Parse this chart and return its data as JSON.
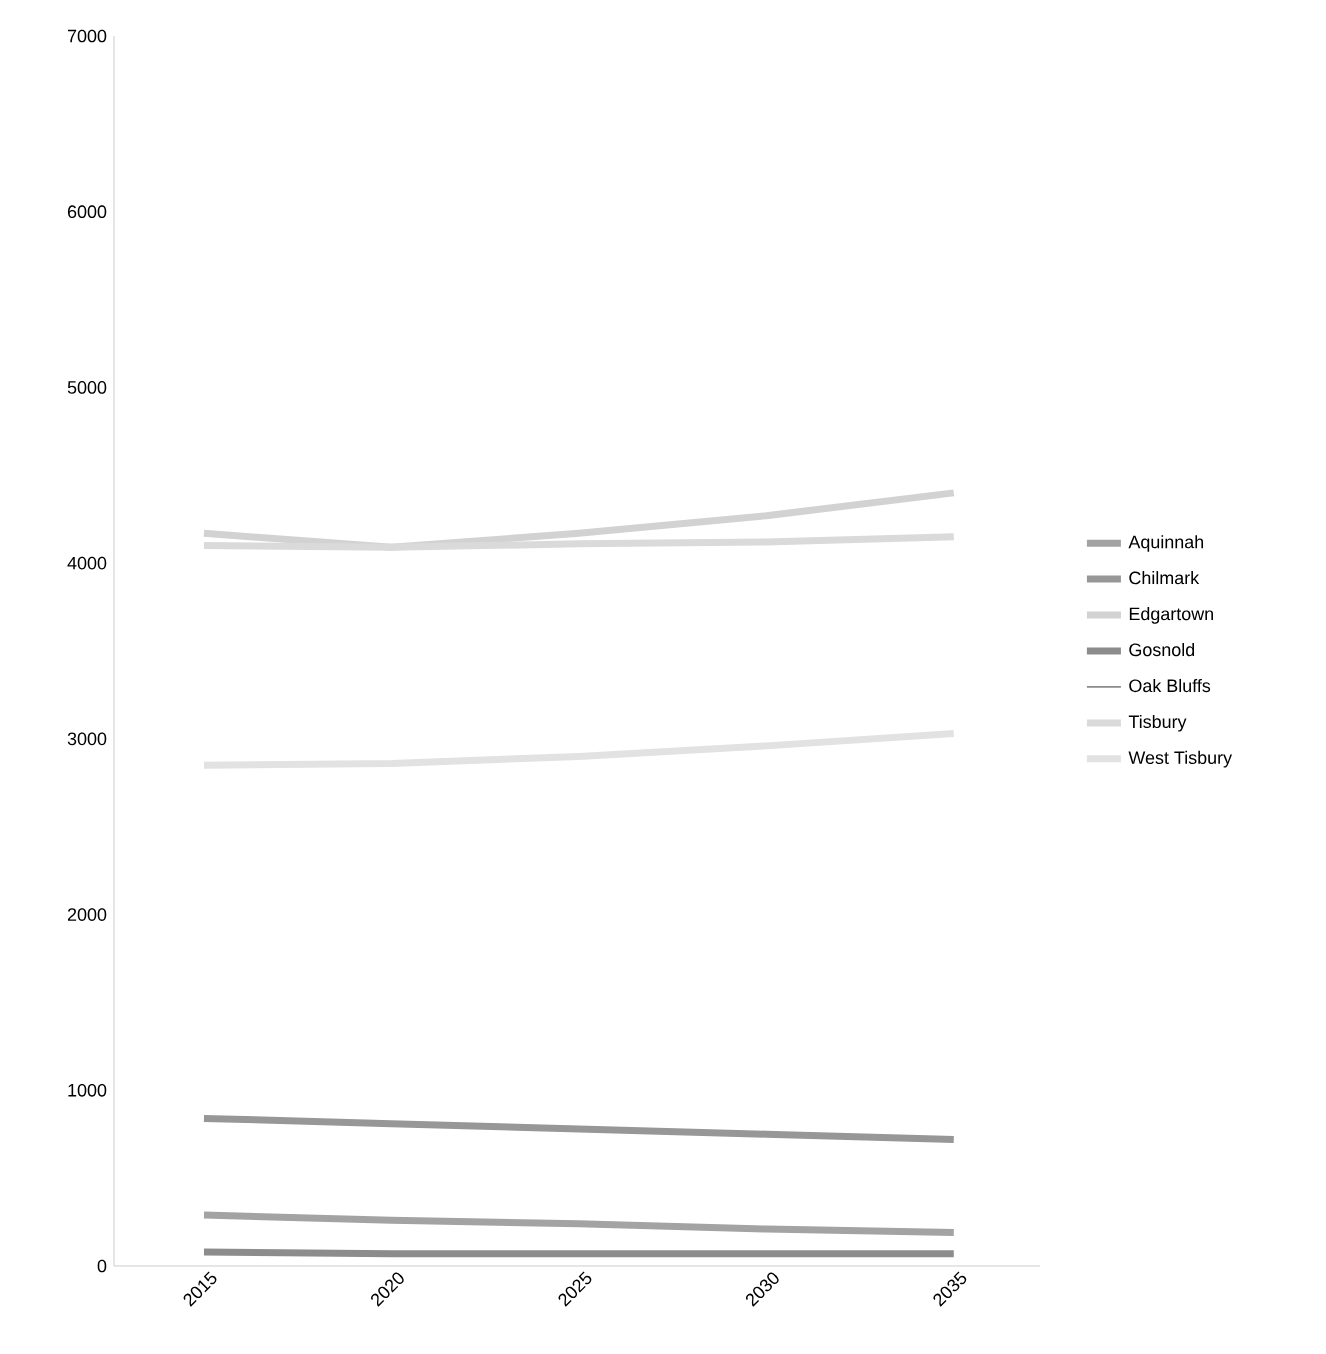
{
  "chart_data": {
    "type": "line",
    "x": [
      2015,
      2020,
      2025,
      2030,
      2035
    ],
    "series": [
      {
        "name": "Aquinnah",
        "color": "#a3a3a3",
        "values": [
          290,
          260,
          240,
          210,
          190
        ]
      },
      {
        "name": "Chilmark",
        "color": "#979797",
        "values": [
          840,
          810,
          780,
          750,
          720
        ]
      },
      {
        "name": "Edgartown",
        "color": "#d2d2d2",
        "values": [
          4170,
          4090,
          4170,
          4270,
          4400
        ]
      },
      {
        "name": "Gosnold",
        "color": "#8c8c8c",
        "values": [
          80,
          70,
          70,
          70,
          70
        ]
      },
      {
        "name": "Oak Bluffs",
        "values": [
          null,
          null,
          null,
          null,
          null
        ]
      },
      {
        "name": "Tisbury",
        "color": "#dadada",
        "values": [
          4100,
          4090,
          4110,
          4120,
          4150
        ]
      },
      {
        "name": "West Tisbury",
        "color": "#e2e2e2",
        "values": [
          2850,
          2860,
          2900,
          2960,
          3030
        ]
      }
    ],
    "xlim": [
      2012.6,
      2037.3
    ],
    "ylim": [
      0,
      7000
    ],
    "xticks": [
      2015,
      2020,
      2025,
      2030,
      2035
    ],
    "yticks": [
      0,
      1000,
      2000,
      3000,
      4000,
      5000,
      6000,
      7000
    ],
    "legend": "right",
    "grid": false,
    "marker": "none",
    "line_style": "solid"
  }
}
